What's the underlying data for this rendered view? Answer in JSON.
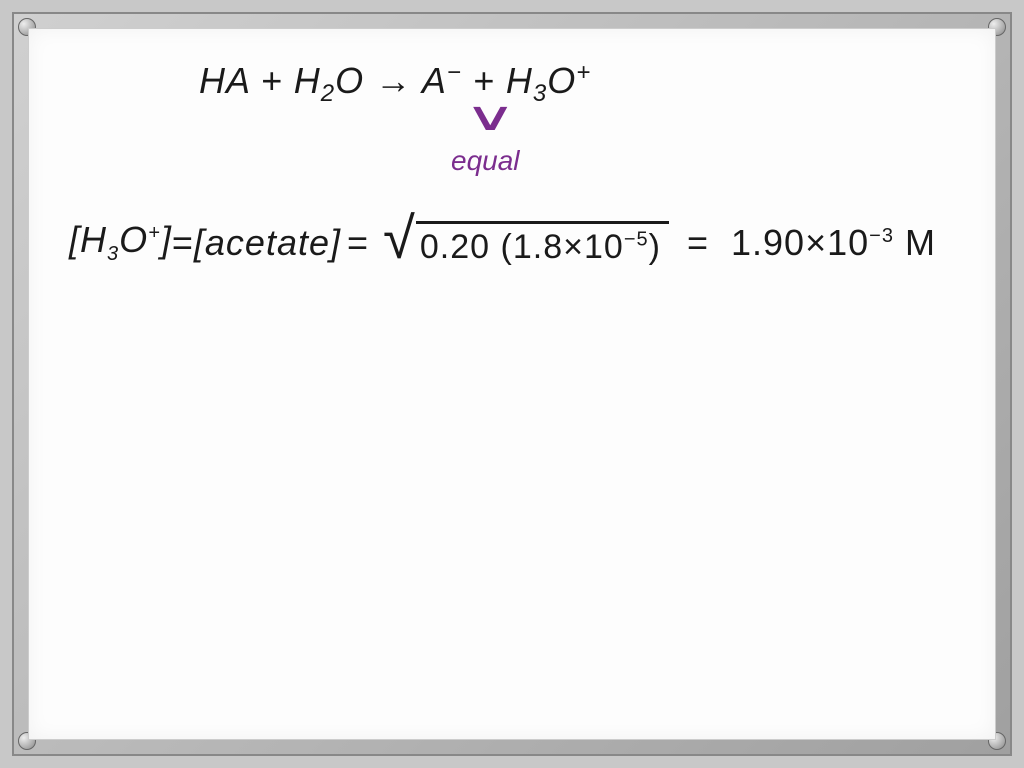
{
  "whiteboard": {
    "background_color": "#fdfdfd",
    "frame_color": "#b0b0b0",
    "ink_color": "#1a1a1a",
    "accent_color": "#7b2d8e",
    "font_family": "Comic Sans MS"
  },
  "equation1": {
    "reactant1": "HA",
    "plus1": "+",
    "reactant2_base": "H",
    "reactant2_sub": "2",
    "reactant2_suffix": "O",
    "arrow": "→",
    "product1_base": "A",
    "product1_sup": "−",
    "plus2": "+",
    "product2_base": "H",
    "product2_sub": "3",
    "product2_suffix": "O",
    "product2_sup": "+"
  },
  "annotation": {
    "symbol": "∨",
    "label": "equal"
  },
  "equation2": {
    "lhs1_open": "[",
    "lhs1_base": "H",
    "lhs1_sub": "3",
    "lhs1_mid": "O",
    "lhs1_sup": "+",
    "lhs1_close": "]",
    "eq1": "=",
    "lhs2_open": "[",
    "lhs2_text": "acetate",
    "lhs2_close": "]",
    "eq2": "=",
    "sqrt_val1": "0.20",
    "sqrt_paren_open": "(",
    "sqrt_val2_mantissa": "1.8",
    "sqrt_val2_x": "×",
    "sqrt_val2_base": "10",
    "sqrt_val2_exp": "−5",
    "sqrt_paren_close": ")",
    "eq3": "=",
    "result_mantissa": "1.90",
    "result_x": "×",
    "result_base": "10",
    "result_exp": "−3",
    "result_unit": "M"
  }
}
